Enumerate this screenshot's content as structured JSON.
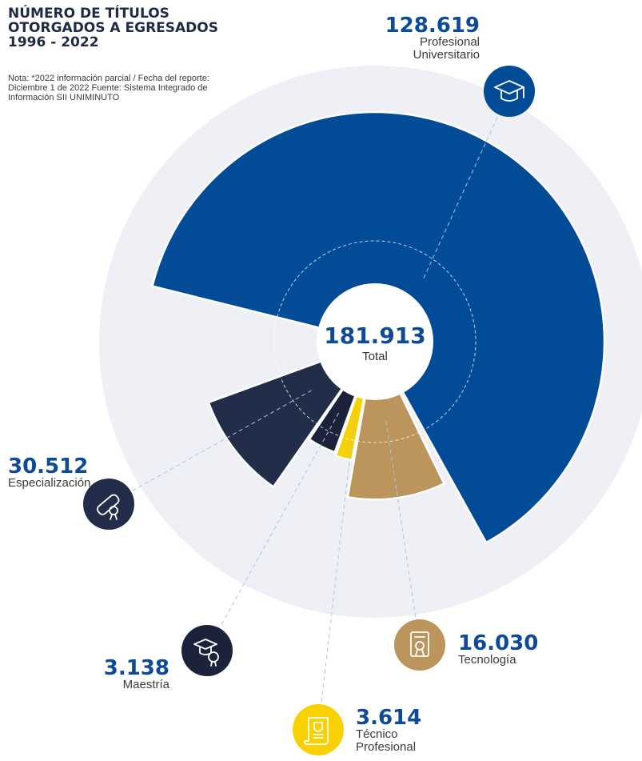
{
  "title": "NÚMERO DE TÍTULOS OTORGADOS A EGRESADOS 1996 - 2022",
  "note": "Nota: *2022 información parcial / Fecha del reporte: Diciembre 1 de 2022 Fuente: Sistema Integrado de Información SII UNIMINUTO",
  "total": {
    "value": "181.913",
    "label": "Total"
  },
  "colors": {
    "background_ring": "#eef0f5",
    "label_blue": "#0d4a97",
    "profesional": "#024b96",
    "especializacion": "#222e49",
    "maestria": "#1b2239",
    "tecnico": "#f9d000",
    "tecnologia": "#bc955c"
  },
  "chart_data": {
    "type": "pie",
    "variant": "polar-area",
    "total": 181913,
    "categories": [
      "Profesional Universitario",
      "Especialización",
      "Maestría",
      "Técnico Profesional",
      "Tecnología"
    ],
    "values": [
      128619,
      30512,
      3138,
      3614,
      16030
    ],
    "labels": [
      {
        "value": "128.619",
        "name": [
          "Profesional",
          "Universitario"
        ],
        "icon": "graduation-cap-icon"
      },
      {
        "value": "30.512",
        "name": [
          "Especialización"
        ],
        "icon": "diploma-scroll-icon"
      },
      {
        "value": "3.138",
        "name": [
          "Maestría"
        ],
        "icon": "graduate-medal-icon"
      },
      {
        "value": "3.614",
        "name": [
          "Técnico",
          "Profesional"
        ],
        "icon": "certificate-scroll-icon"
      },
      {
        "value": "16.030",
        "name": [
          "Tecnología"
        ],
        "icon": "certificate-document-icon"
      }
    ]
  }
}
